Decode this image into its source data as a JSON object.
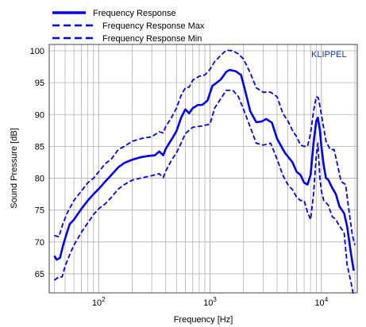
{
  "colors": {
    "series": "#0000e6",
    "grid": "#b3b3b3",
    "frame": "#444444",
    "brand": "#1a3a9a"
  },
  "chart_data": {
    "type": "line",
    "xlabel": "Frequency  [Hz]",
    "ylabel": "Sound Pressure  [dB]",
    "x_scale": "log",
    "xlim": [
      36,
      21000
    ],
    "ylim": [
      62,
      101
    ],
    "x_ticks": [
      {
        "value": 100,
        "base": "10",
        "exp": "2"
      },
      {
        "value": 1000,
        "base": "10",
        "exp": "3"
      },
      {
        "value": 10000,
        "base": "10",
        "exp": "4"
      }
    ],
    "y_ticks": [
      65,
      70,
      75,
      80,
      85,
      90,
      95,
      100
    ],
    "grid": true,
    "legend_position": "top-left-outside",
    "brand_label": "KLIPPEL",
    "series": [
      {
        "name": "Frequency Response",
        "style": "solid",
        "points": [
          [
            40,
            67.8
          ],
          [
            42,
            67.2
          ],
          [
            45,
            67.5
          ],
          [
            48,
            69.5
          ],
          [
            52,
            71.5
          ],
          [
            55,
            72.8
          ],
          [
            60,
            73.5
          ],
          [
            70,
            75.2
          ],
          [
            80,
            76.5
          ],
          [
            90,
            77.5
          ],
          [
            100,
            78.3
          ],
          [
            115,
            79.5
          ],
          [
            130,
            80.5
          ],
          [
            150,
            81.7
          ],
          [
            170,
            82.4
          ],
          [
            200,
            82.9
          ],
          [
            240,
            83.3
          ],
          [
            280,
            83.5
          ],
          [
            320,
            83.6
          ],
          [
            350,
            84.2
          ],
          [
            380,
            83.6
          ],
          [
            400,
            84.6
          ],
          [
            430,
            85.5
          ],
          [
            460,
            86.3
          ],
          [
            500,
            87.4
          ],
          [
            550,
            89.5
          ],
          [
            600,
            90.8
          ],
          [
            650,
            90.2
          ],
          [
            700,
            91.0
          ],
          [
            780,
            91.5
          ],
          [
            850,
            91.5
          ],
          [
            950,
            92.2
          ],
          [
            1050,
            94.5
          ],
          [
            1150,
            95.0
          ],
          [
            1250,
            95.5
          ],
          [
            1400,
            96.7
          ],
          [
            1500,
            97.0
          ],
          [
            1700,
            96.8
          ],
          [
            1900,
            96.2
          ],
          [
            2050,
            94.0
          ],
          [
            2300,
            90.5
          ],
          [
            2600,
            88.8
          ],
          [
            2900,
            88.9
          ],
          [
            3200,
            89.3
          ],
          [
            3600,
            88.7
          ],
          [
            4000,
            86.2
          ],
          [
            4700,
            84.0
          ],
          [
            5500,
            82.5
          ],
          [
            6000,
            81.0
          ],
          [
            6500,
            80.5
          ],
          [
            7000,
            79.3
          ],
          [
            7500,
            79.0
          ],
          [
            8000,
            80.5
          ],
          [
            8500,
            85.5
          ],
          [
            9000,
            89.0
          ],
          [
            9300,
            89.5
          ],
          [
            9700,
            87.5
          ],
          [
            10000,
            85.0
          ],
          [
            10500,
            82.0
          ],
          [
            11000,
            80.0
          ],
          [
            11500,
            79.8
          ],
          [
            12500,
            78.5
          ],
          [
            13500,
            77.5
          ],
          [
            14500,
            75.6
          ],
          [
            16000,
            74.5
          ],
          [
            17000,
            72.5
          ],
          [
            18500,
            68.0
          ],
          [
            19500,
            65.5
          ]
        ]
      },
      {
        "name": "Frequency Response Max",
        "style": "dashed",
        "points": [
          [
            40,
            71.0
          ],
          [
            44,
            70.8
          ],
          [
            47,
            72.5
          ],
          [
            52,
            74.5
          ],
          [
            60,
            76.5
          ],
          [
            70,
            78.0
          ],
          [
            80,
            79.3
          ],
          [
            90,
            80.0
          ],
          [
            100,
            81.0
          ],
          [
            115,
            82.3
          ],
          [
            130,
            83.0
          ],
          [
            150,
            84.5
          ],
          [
            170,
            85.0
          ],
          [
            200,
            85.8
          ],
          [
            250,
            86.3
          ],
          [
            300,
            86.5
          ],
          [
            350,
            87.3
          ],
          [
            380,
            87.1
          ],
          [
            400,
            88.1
          ],
          [
            450,
            89.5
          ],
          [
            500,
            91.0
          ],
          [
            550,
            93.0
          ],
          [
            600,
            94.2
          ],
          [
            650,
            94.3
          ],
          [
            700,
            95.4
          ],
          [
            800,
            96.0
          ],
          [
            900,
            96.2
          ],
          [
            1000,
            97.1
          ],
          [
            1100,
            98.3
          ],
          [
            1250,
            99.3
          ],
          [
            1400,
            100.1
          ],
          [
            1600,
            100.0
          ],
          [
            1800,
            99.5
          ],
          [
            2000,
            98.7
          ],
          [
            2300,
            96.5
          ],
          [
            2600,
            94.2
          ],
          [
            3000,
            93.5
          ],
          [
            3500,
            93.5
          ],
          [
            4000,
            92.8
          ],
          [
            4500,
            90.2
          ],
          [
            5000,
            89.0
          ],
          [
            5500,
            87.5
          ],
          [
            6000,
            86.5
          ],
          [
            6500,
            85.2
          ],
          [
            7000,
            85.0
          ],
          [
            7500,
            85.0
          ],
          [
            8000,
            87.0
          ],
          [
            8500,
            90.5
          ],
          [
            9000,
            92.8
          ],
          [
            9400,
            92.6
          ],
          [
            10000,
            90.0
          ],
          [
            11000,
            85.8
          ],
          [
            12000,
            84.5
          ],
          [
            13000,
            84.5
          ],
          [
            14000,
            82.0
          ],
          [
            15000,
            79.5
          ],
          [
            16500,
            79.0
          ],
          [
            17500,
            75.5
          ],
          [
            19000,
            71.0
          ],
          [
            20000,
            69.5
          ]
        ]
      },
      {
        "name": "Frequency Response Min",
        "style": "dashed",
        "points": [
          [
            40,
            64.0
          ],
          [
            44,
            64.5
          ],
          [
            47,
            64.5
          ],
          [
            50,
            66.2
          ],
          [
            55,
            68.0
          ],
          [
            60,
            69.5
          ],
          [
            70,
            71.5
          ],
          [
            80,
            73.0
          ],
          [
            90,
            74.3
          ],
          [
            100,
            75.2
          ],
          [
            115,
            76.0
          ],
          [
            130,
            77.0
          ],
          [
            150,
            78.3
          ],
          [
            170,
            79.0
          ],
          [
            200,
            79.7
          ],
          [
            250,
            80.1
          ],
          [
            300,
            80.4
          ],
          [
            350,
            80.7
          ],
          [
            380,
            80.1
          ],
          [
            400,
            81.1
          ],
          [
            450,
            82.8
          ],
          [
            500,
            84.0
          ],
          [
            550,
            85.5
          ],
          [
            600,
            87.0
          ],
          [
            700,
            88.0
          ],
          [
            850,
            88.2
          ],
          [
            1000,
            88.5
          ],
          [
            1100,
            91.0
          ],
          [
            1250,
            92.5
          ],
          [
            1400,
            93.8
          ],
          [
            1600,
            93.8
          ],
          [
            1800,
            92.8
          ],
          [
            2000,
            90.8
          ],
          [
            2300,
            88.0
          ],
          [
            2600,
            85.5
          ],
          [
            3000,
            85.2
          ],
          [
            3500,
            85.5
          ],
          [
            4000,
            83.0
          ],
          [
            4500,
            80.5
          ],
          [
            5000,
            79.0
          ],
          [
            5500,
            78.2
          ],
          [
            6000,
            77.0
          ],
          [
            6500,
            76.5
          ],
          [
            7000,
            76.5
          ],
          [
            7500,
            74.7
          ],
          [
            8000,
            73.5
          ],
          [
            8500,
            77.5
          ],
          [
            9000,
            83.5
          ],
          [
            9300,
            85.5
          ],
          [
            9700,
            80.0
          ],
          [
            10000,
            78.0
          ],
          [
            10500,
            76.5
          ],
          [
            11500,
            75.8
          ],
          [
            12500,
            74.0
          ],
          [
            13500,
            73.5
          ],
          [
            14500,
            72.5
          ],
          [
            16000,
            71.5
          ],
          [
            17000,
            66.5
          ],
          [
            18500,
            63.5
          ],
          [
            19500,
            61.5
          ]
        ]
      }
    ]
  }
}
